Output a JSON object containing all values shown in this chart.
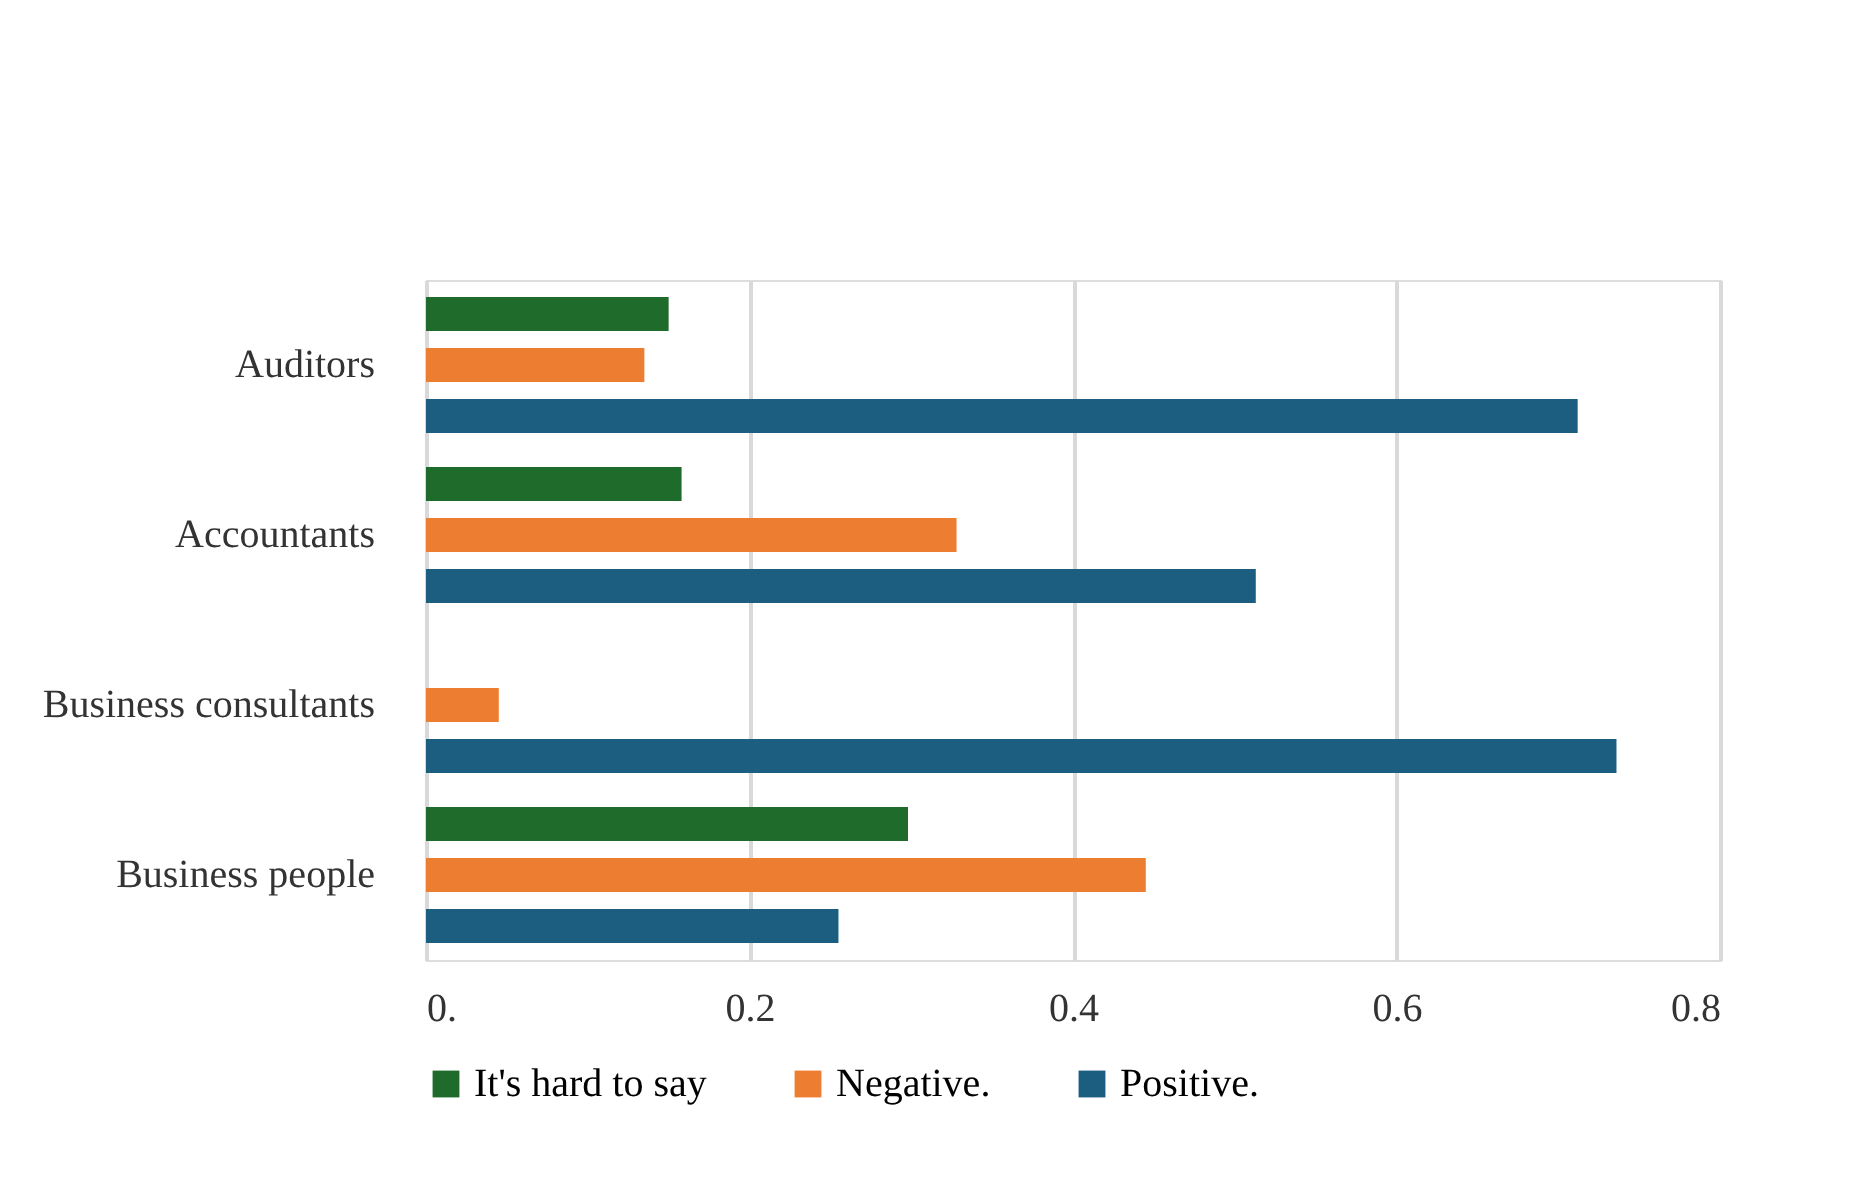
{
  "chart_data": {
    "type": "bar",
    "orientation": "horizontal",
    "categories": [
      "Auditors",
      "Accountants",
      "Business consultants",
      "Business people"
    ],
    "series": [
      {
        "name": "It's hard to say",
        "color": "#1f6b2b",
        "values": [
          0.15,
          0.158,
          null,
          0.298
        ]
      },
      {
        "name": "Negative.",
        "color": "#ed7d31",
        "values": [
          0.135,
          0.328,
          0.045,
          0.445
        ]
      },
      {
        "name": "Positive.",
        "color": "#1b5e80",
        "values": [
          0.712,
          0.513,
          0.736,
          0.255
        ]
      }
    ],
    "xlim": [
      0,
      0.8
    ],
    "xticks": [
      {
        "value": 0,
        "label": "0."
      },
      0.2,
      0.4,
      0.6,
      0.8
    ],
    "grid": "x",
    "legend": "bottom"
  }
}
